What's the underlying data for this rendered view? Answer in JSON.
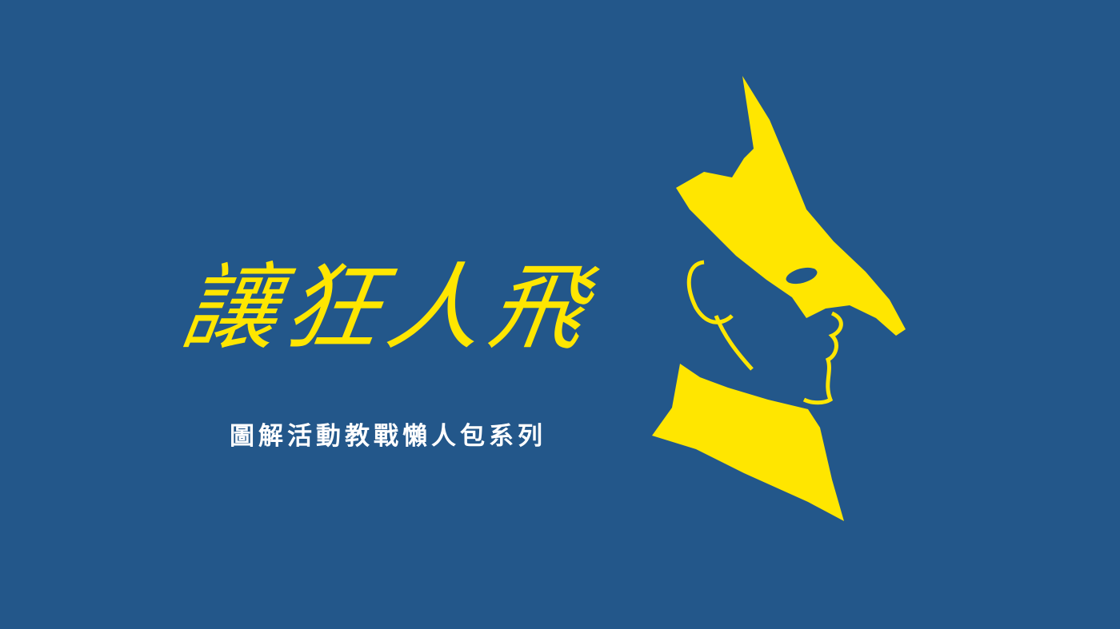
{
  "logo": {
    "text": "讓狂人飛"
  },
  "subtitle": "圖解活動教戰懶人包系列"
}
